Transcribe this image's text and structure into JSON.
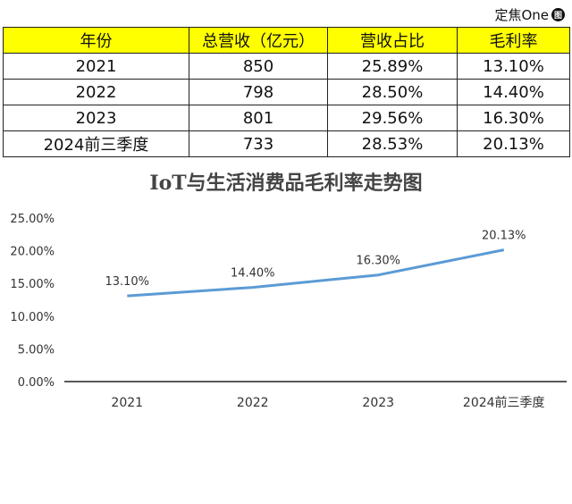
{
  "watermark": {
    "text": "定焦One",
    "logo_char": "图"
  },
  "table": {
    "headers": [
      "年份",
      "总营收（亿元）",
      "营收占比",
      "毛利率"
    ],
    "rows": [
      [
        "2021",
        "850",
        "25.89%",
        "13.10%"
      ],
      [
        "2022",
        "798",
        "28.50%",
        "14.40%"
      ],
      [
        "2023",
        "801",
        "29.56%",
        "16.30%"
      ],
      [
        "2024前三季度",
        "733",
        "28.53%",
        "20.13%"
      ]
    ],
    "header_color": "#ffff00"
  },
  "chart_data": {
    "type": "line",
    "title": "IoT与生活消费品毛利率走势图",
    "categories": [
      "2021",
      "2022",
      "2023",
      "2024前三季度"
    ],
    "series": [
      {
        "values": [
          13.1,
          14.4,
          16.3,
          20.13
        ],
        "labels": [
          "13.10%",
          "14.40%",
          "16.30%",
          "20.13%"
        ],
        "color": "#5b9bd5"
      }
    ],
    "y_ticks": [
      "0.00%",
      "5.00%",
      "10.00%",
      "15.00%",
      "20.00%",
      "25.00%"
    ],
    "ylim": [
      0,
      25
    ],
    "grid": false,
    "legend": "none"
  }
}
